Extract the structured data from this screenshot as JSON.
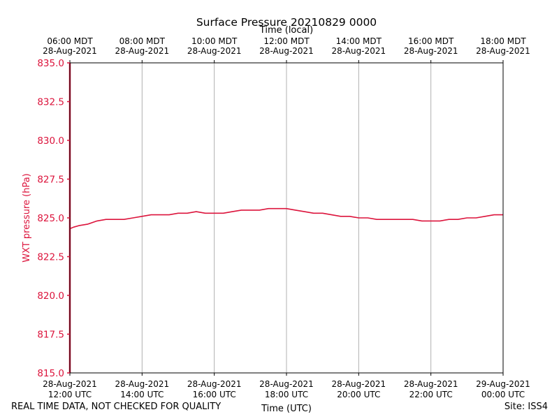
{
  "chart_data": {
    "type": "line",
    "title": "Surface Pressure 20210829 0000",
    "xlabel": "Time (UTC)",
    "xlabel_top": "Time (local)",
    "ylabel": "WXT pressure (hPa)",
    "ylim": [
      815.0,
      835.0
    ],
    "y_ticks": [
      "815.0",
      "817.5",
      "820.0",
      "822.5",
      "825.0",
      "827.5",
      "830.0",
      "832.5",
      "835.0"
    ],
    "x_range_hours": [
      12,
      24
    ],
    "x_ticks_bottom": [
      {
        "date": "28-Aug-2021",
        "time": "12:00 UTC"
      },
      {
        "date": "28-Aug-2021",
        "time": "14:00 UTC"
      },
      {
        "date": "28-Aug-2021",
        "time": "16:00 UTC"
      },
      {
        "date": "28-Aug-2021",
        "time": "18:00 UTC"
      },
      {
        "date": "28-Aug-2021",
        "time": "20:00 UTC"
      },
      {
        "date": "28-Aug-2021",
        "time": "22:00 UTC"
      },
      {
        "date": "29-Aug-2021",
        "time": "00:00 UTC"
      }
    ],
    "x_ticks_top": [
      {
        "time": "06:00 MDT",
        "date": "28-Aug-2021"
      },
      {
        "time": "08:00 MDT",
        "date": "28-Aug-2021"
      },
      {
        "time": "10:00 MDT",
        "date": "28-Aug-2021"
      },
      {
        "time": "12:00 MDT",
        "date": "28-Aug-2021"
      },
      {
        "time": "14:00 MDT",
        "date": "28-Aug-2021"
      },
      {
        "time": "16:00 MDT",
        "date": "28-Aug-2021"
      },
      {
        "time": "18:00 MDT",
        "date": "28-Aug-2021"
      }
    ],
    "grid": "vertical",
    "series": [
      {
        "color": "#dc143c",
        "x": [
          12.0,
          12.1,
          12.25,
          12.5,
          12.75,
          13.0,
          13.25,
          13.5,
          13.75,
          14.0,
          14.25,
          14.5,
          14.75,
          15.0,
          15.25,
          15.5,
          15.75,
          16.0,
          16.25,
          16.5,
          16.75,
          17.0,
          17.25,
          17.5,
          17.75,
          18.0,
          18.25,
          18.5,
          18.75,
          19.0,
          19.25,
          19.5,
          19.75,
          20.0,
          20.25,
          20.5,
          20.75,
          21.0,
          21.25,
          21.5,
          21.75,
          22.0,
          22.25,
          22.5,
          22.75,
          23.0,
          23.25,
          23.5,
          23.75,
          24.0
        ],
        "values": [
          824.3,
          824.4,
          824.5,
          824.6,
          824.8,
          824.9,
          824.9,
          824.9,
          825.0,
          825.1,
          825.2,
          825.2,
          825.2,
          825.3,
          825.3,
          825.4,
          825.3,
          825.3,
          825.3,
          825.4,
          825.5,
          825.5,
          825.5,
          825.6,
          825.6,
          825.6,
          825.5,
          825.4,
          825.3,
          825.3,
          825.2,
          825.1,
          825.1,
          825.0,
          825.0,
          824.9,
          824.9,
          824.9,
          824.9,
          824.9,
          824.8,
          824.8,
          824.8,
          824.9,
          824.9,
          825.0,
          825.0,
          825.1,
          825.2,
          825.2
        ]
      },
      {
        "color": "#dc143c",
        "x": [
          12.0,
          12.0
        ],
        "values": [
          815.0,
          835.0
        ]
      }
    ]
  },
  "footer": {
    "left": "REAL TIME DATA, NOT CHECKED FOR QUALITY",
    "right": "Site: ISS4"
  }
}
